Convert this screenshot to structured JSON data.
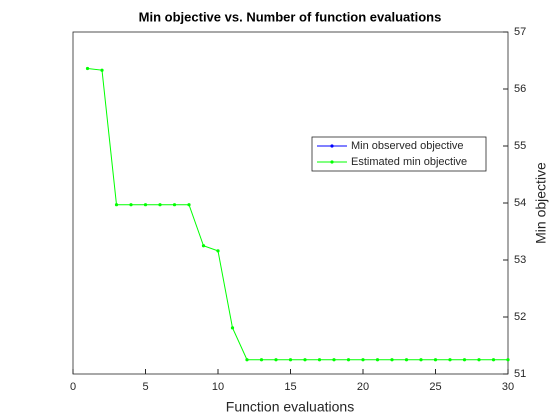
{
  "chart_data": {
    "type": "line",
    "title": "Min objective vs. Number of function evaluations",
    "xlabel": "Function evaluations",
    "ylabel": "Min objective",
    "x": [
      1,
      2,
      3,
      4,
      5,
      6,
      7,
      8,
      9,
      10,
      11,
      12,
      13,
      14,
      15,
      16,
      17,
      18,
      19,
      20,
      21,
      22,
      23,
      24,
      25,
      26,
      27,
      28,
      29,
      30
    ],
    "series": [
      {
        "name": "Min observed objective",
        "color": "#0000ff",
        "values": [
          null,
          null,
          null,
          null,
          null,
          null,
          null,
          null,
          null,
          null,
          null,
          null,
          null,
          null,
          null,
          null,
          null,
          null,
          null,
          null,
          null,
          null,
          null,
          null,
          null,
          null,
          null,
          null,
          null,
          null
        ]
      },
      {
        "name": "Estimated min objective",
        "color": "#00ff00",
        "values": [
          56.36,
          56.33,
          53.97,
          53.97,
          53.97,
          53.97,
          53.97,
          53.97,
          53.25,
          53.16,
          51.81,
          51.25,
          51.25,
          51.25,
          51.25,
          51.25,
          51.25,
          51.25,
          51.25,
          51.25,
          51.25,
          51.25,
          51.25,
          51.25,
          51.25,
          51.25,
          51.25,
          51.25,
          51.25,
          51.25
        ]
      }
    ],
    "xlim": [
      0,
      30
    ],
    "xticks": [
      0,
      5,
      10,
      15,
      20,
      25,
      30
    ],
    "ylim": [
      51,
      57
    ],
    "yticks": [
      51,
      52,
      53,
      54,
      55,
      56,
      57
    ],
    "y_axis_side": "right",
    "legend": "upper right"
  }
}
